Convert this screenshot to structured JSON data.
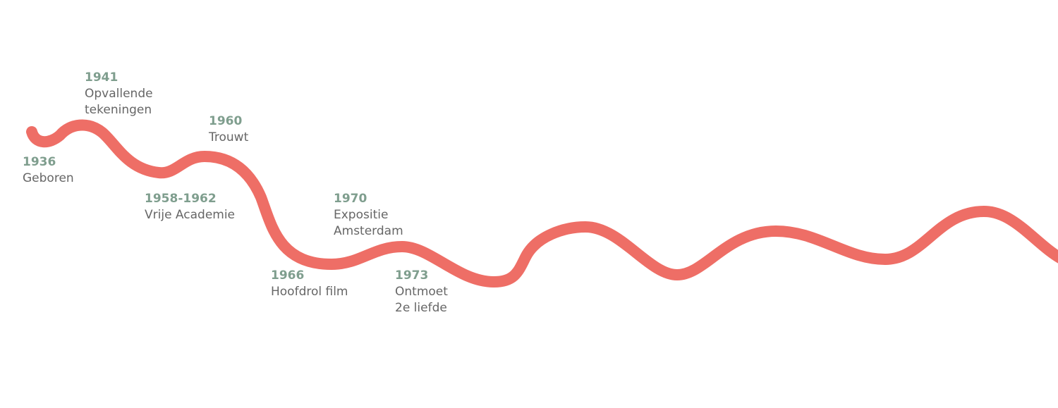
{
  "events": [
    {
      "year": "1936",
      "lines": [
        "Geboren"
      ]
    },
    {
      "year": "1941",
      "lines": [
        "Opvallende",
        "tekeningen"
      ]
    },
    {
      "year": "1958-1962",
      "lines": [
        "Vrije Academie"
      ]
    },
    {
      "year": "1960",
      "lines": [
        "Trouwt"
      ]
    },
    {
      "year": "1966",
      "lines": [
        "Hoofdrol film"
      ]
    },
    {
      "year": "1970",
      "lines": [
        "Expositie",
        "Amsterdam"
      ]
    },
    {
      "year": "1973",
      "lines": [
        "Ontmoet",
        "2e liefde"
      ]
    }
  ]
}
